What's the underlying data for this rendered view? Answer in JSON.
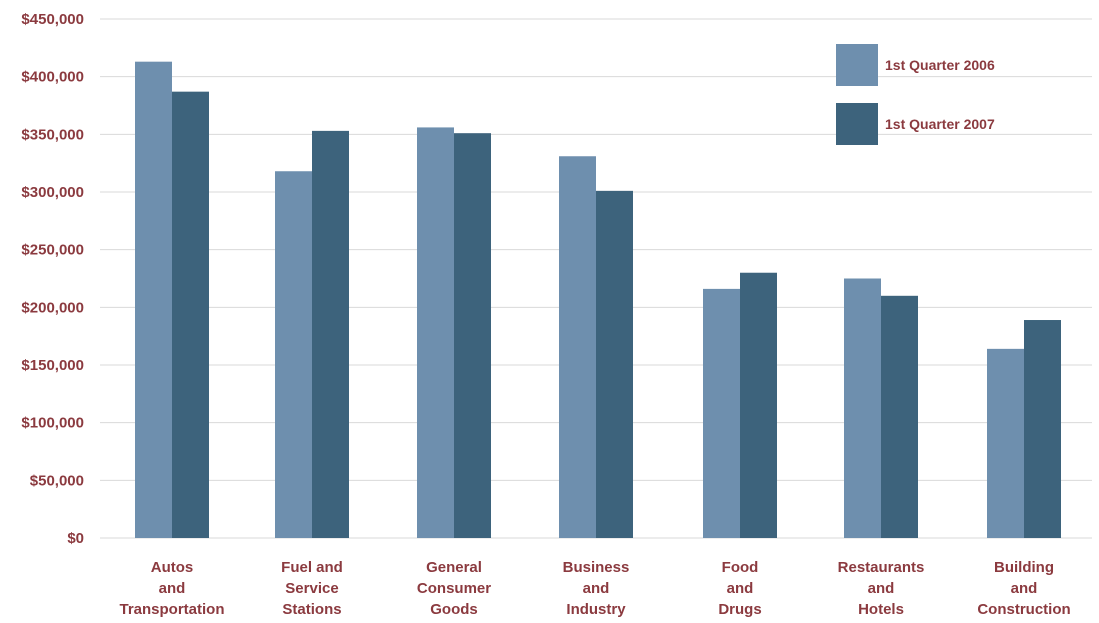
{
  "chart_data": {
    "type": "bar",
    "categories": [
      [
        "Autos",
        "and",
        "Transportation"
      ],
      [
        "Fuel and",
        "Service",
        "Stations"
      ],
      [
        "General",
        "Consumer",
        "Goods"
      ],
      [
        "Business",
        "and",
        "Industry"
      ],
      [
        "Food",
        "and",
        "Drugs"
      ],
      [
        "Restaurants",
        "and",
        "Hotels"
      ],
      [
        "Building",
        "and",
        "Construction"
      ]
    ],
    "series": [
      {
        "name": "1st Quarter 2006",
        "color": "#6e8fae",
        "values": [
          413000,
          318000,
          356000,
          331000,
          216000,
          225000,
          164000
        ]
      },
      {
        "name": "1st Quarter 2007",
        "color": "#3d637c",
        "values": [
          387000,
          353000,
          351000,
          301000,
          230000,
          210000,
          189000
        ]
      }
    ],
    "ylim": [
      0,
      450000
    ],
    "yticks": [
      0,
      50000,
      100000,
      150000,
      200000,
      250000,
      300000,
      350000,
      400000,
      450000
    ],
    "ytick_labels": [
      "$0",
      "$50,000",
      "$100,000",
      "$150,000",
      "$200,000",
      "$250,000",
      "$300,000",
      "$350,000",
      "$400,000",
      "$450,000"
    ],
    "title": "",
    "xlabel": "",
    "ylabel": "",
    "grid": true,
    "legend_position": "top-right"
  }
}
